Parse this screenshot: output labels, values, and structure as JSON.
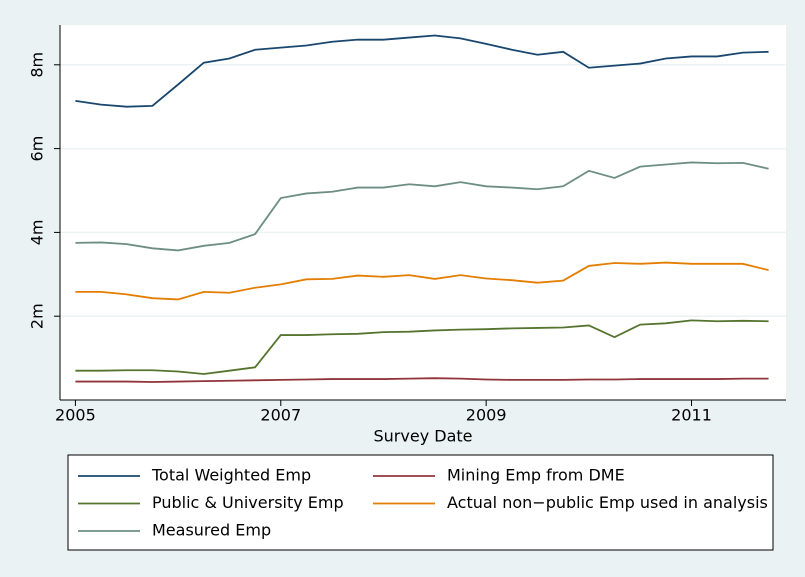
{
  "chart_data": {
    "type": "line",
    "x_label": "Survey Date",
    "x": [
      2005,
      2005.25,
      2005.5,
      2005.75,
      2006,
      2006.25,
      2006.5,
      2006.75,
      2007,
      2007.25,
      2007.5,
      2007.75,
      2008,
      2008.25,
      2008.5,
      2008.75,
      2009,
      2009.25,
      2009.5,
      2009.75,
      2010,
      2010.25,
      2010.5,
      2010.75,
      2011,
      2011.25,
      2011.5,
      2011.75
    ],
    "series": [
      {
        "name": "Total Weighted Emp",
        "color": "#1a476f",
        "values": [
          7.14,
          7.05,
          7.0,
          7.02,
          7.53,
          8.05,
          8.15,
          8.36,
          8.41,
          8.46,
          8.55,
          8.6,
          8.6,
          8.65,
          8.7,
          8.63,
          8.5,
          8.36,
          8.24,
          8.31,
          7.93,
          7.98,
          8.03,
          8.15,
          8.2,
          8.2,
          8.29,
          8.31
        ]
      },
      {
        "name": "Mining Emp from DME",
        "color": "#90353b",
        "values": [
          0.44,
          0.44,
          0.44,
          0.43,
          0.44,
          0.45,
          0.46,
          0.47,
          0.48,
          0.49,
          0.5,
          0.5,
          0.5,
          0.51,
          0.52,
          0.51,
          0.49,
          0.48,
          0.48,
          0.48,
          0.49,
          0.49,
          0.5,
          0.5,
          0.5,
          0.5,
          0.51,
          0.51
        ]
      },
      {
        "name": "Public & University Emp",
        "color": "#55752f",
        "values": [
          0.7,
          0.7,
          0.71,
          0.71,
          0.68,
          0.62,
          0.7,
          0.78,
          1.55,
          1.55,
          1.57,
          1.58,
          1.62,
          1.63,
          1.66,
          1.68,
          1.69,
          1.71,
          1.72,
          1.73,
          1.78,
          1.5,
          1.8,
          1.83,
          1.9,
          1.88,
          1.89,
          1.88
        ]
      },
      {
        "name": "Actual non−public Emp used in analysis",
        "color": "#e37e00",
        "values": [
          2.58,
          2.58,
          2.52,
          2.43,
          2.4,
          2.58,
          2.56,
          2.68,
          2.76,
          2.88,
          2.89,
          2.97,
          2.94,
          2.98,
          2.89,
          2.98,
          2.9,
          2.86,
          2.8,
          2.85,
          3.2,
          3.27,
          3.25,
          3.28,
          3.25,
          3.25,
          3.25,
          3.1
        ]
      },
      {
        "name": "Measured Emp",
        "color": "#6e8e84",
        "values": [
          3.75,
          3.76,
          3.72,
          3.62,
          3.57,
          3.68,
          3.75,
          3.96,
          4.82,
          4.93,
          4.97,
          5.07,
          5.07,
          5.15,
          5.1,
          5.2,
          5.1,
          5.07,
          5.03,
          5.1,
          5.47,
          5.3,
          5.57,
          5.62,
          5.67,
          5.65,
          5.66,
          5.52
        ]
      }
    ],
    "xlim": [
      2004.85,
      2011.92
    ],
    "xticks": [
      2005,
      2007,
      2009,
      2011
    ],
    "ylim": [
      0,
      8.95
    ],
    "yticks": [
      {
        "value": 2,
        "label": "2m"
      },
      {
        "value": 4,
        "label": "4m"
      },
      {
        "value": 6,
        "label": "6m"
      },
      {
        "value": 8,
        "label": "8m"
      }
    ],
    "grid": true,
    "legend_position": "bottom"
  }
}
